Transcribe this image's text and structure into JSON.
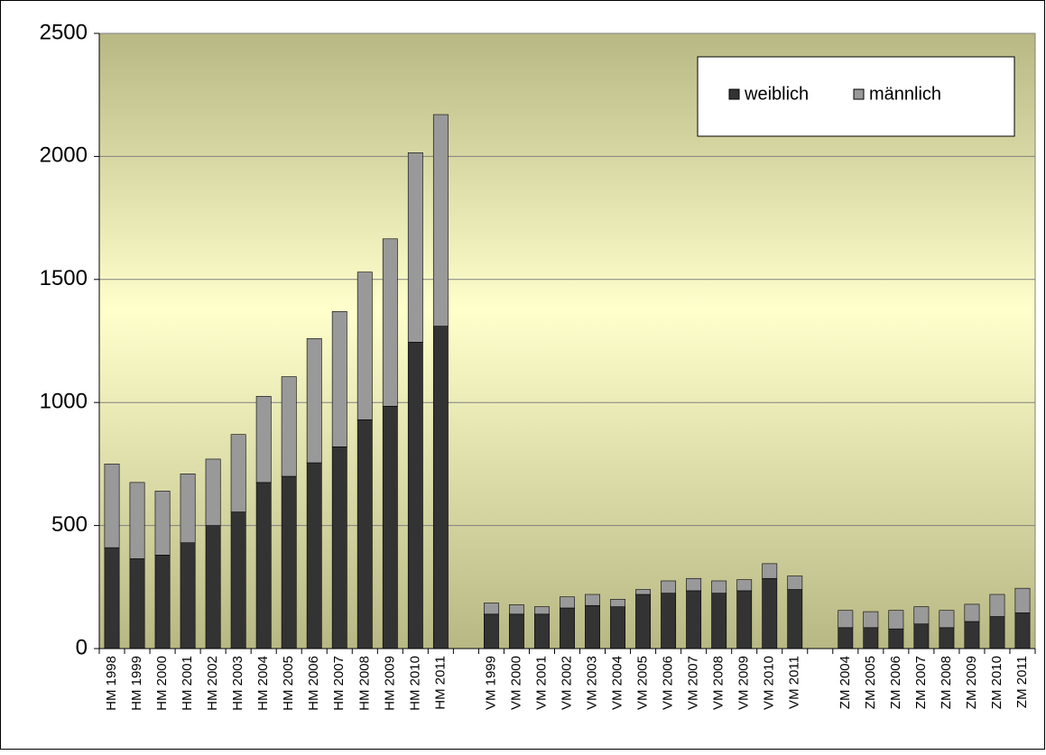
{
  "chart_data": {
    "type": "stacked_bar",
    "categories": [
      "HM 1998",
      "HM 1999",
      "HM 2000",
      "HM 2001",
      "HM 2002",
      "HM 2003",
      "HM 2004",
      "HM 2005",
      "HM 2006",
      "HM 2007",
      "HM 2008",
      "HM 2009",
      "HM 2010",
      "HM 2011",
      null,
      "VM 1999",
      "VM 2000",
      "VM 2001",
      "VM 2002",
      "VM 2003",
      "VM 2004",
      "VM 2005",
      "VM 2006",
      "VM 2007",
      "VM 2008",
      "VM 2009",
      "VM 2010",
      "VM 2011",
      null,
      "ZM 2004",
      "ZM 2005",
      "ZM 2006",
      "ZM 2007",
      "ZM 2008",
      "ZM 2009",
      "ZM 2010",
      "ZM 2011"
    ],
    "series": [
      {
        "name": "weiblich",
        "color": "#333333",
        "values": [
          410,
          365,
          380,
          430,
          500,
          555,
          675,
          700,
          755,
          820,
          930,
          985,
          1245,
          1310,
          null,
          140,
          140,
          140,
          165,
          175,
          170,
          220,
          225,
          235,
          225,
          235,
          285,
          240,
          null,
          85,
          85,
          80,
          100,
          85,
          110,
          130,
          145
        ]
      },
      {
        "name": "männlich",
        "color": "#999999",
        "values": [
          340,
          310,
          260,
          280,
          270,
          315,
          350,
          405,
          505,
          550,
          600,
          680,
          770,
          860,
          null,
          45,
          38,
          30,
          45,
          45,
          30,
          20,
          50,
          50,
          50,
          45,
          60,
          55,
          null,
          70,
          65,
          75,
          70,
          70,
          70,
          90,
          100
        ]
      }
    ],
    "ylim": [
      0,
      2500
    ],
    "yticks": [
      0,
      500,
      1000,
      1500,
      2000,
      2500
    ],
    "grid": true,
    "legend": "top-right"
  }
}
